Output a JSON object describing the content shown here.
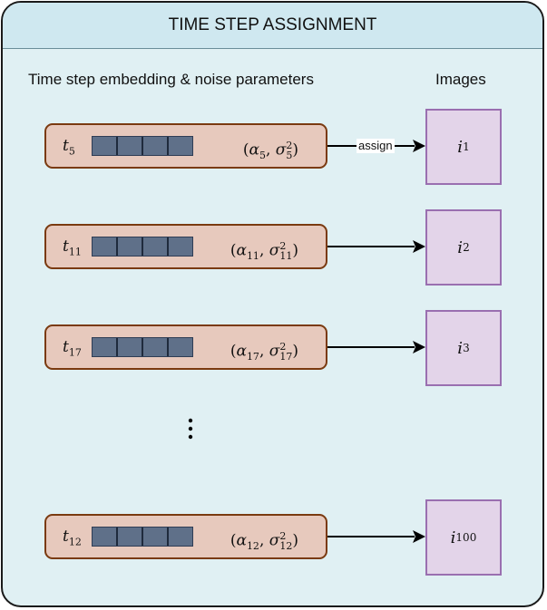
{
  "title": "TIME STEP ASSIGNMENT",
  "left_column_label": "Time step embedding & noise parameters",
  "right_column_label": "Images",
  "arrow_label": "assign",
  "rows": [
    {
      "step": "t",
      "step_sub": "5",
      "alpha_sub": "5",
      "sigma_sup": "2",
      "sigma_sub": "5",
      "image": "i",
      "image_sub": "1"
    },
    {
      "step": "t",
      "step_sub": "11",
      "alpha_sub": "11",
      "sigma_sup": "2",
      "sigma_sub": "11",
      "image": "i",
      "image_sub": "2"
    },
    {
      "step": "t",
      "step_sub": "17",
      "alpha_sub": "17",
      "sigma_sup": "2",
      "sigma_sub": "17",
      "image": "i",
      "image_sub": "3"
    },
    {
      "step": "t",
      "step_sub": "12",
      "alpha_sub": "12",
      "sigma_sup": "2",
      "sigma_sub": "12",
      "image": "i",
      "image_sub": "100"
    }
  ],
  "symbols": {
    "alpha": "α",
    "sigma": "σ"
  },
  "colors": {
    "panel_bg": "#e0f0f3",
    "header_bg": "#cfe8f0",
    "row_fill": "#e7c9bd",
    "row_border": "#7a3a10",
    "embedding_fill": "#5f7089",
    "image_fill": "#e3d4e9",
    "image_border": "#9a6fb0"
  }
}
